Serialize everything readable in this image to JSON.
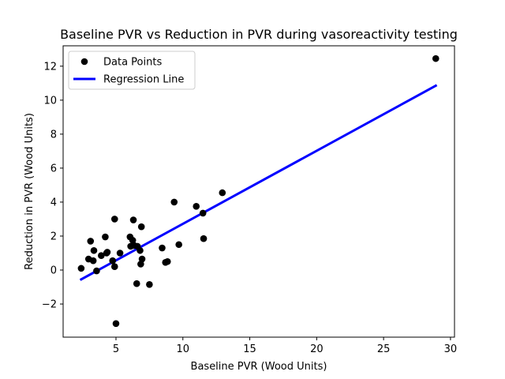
{
  "chart_data": {
    "type": "scatter",
    "title": "Baseline PVR vs Reduction in PVR during vasoreactivity testing",
    "xlabel": "Baseline PVR (Wood Units)",
    "ylabel": "Reduction in PVR (Wood Units)",
    "xlim": [
      1.05,
      30.3
    ],
    "ylim": [
      -3.95,
      13.2
    ],
    "xticks": [
      5,
      10,
      15,
      20,
      25,
      30
    ],
    "yticks": [
      -2,
      0,
      2,
      4,
      6,
      8,
      10,
      12
    ],
    "xtick_labels": [
      "5",
      "10",
      "15",
      "20",
      "25",
      "30"
    ],
    "ytick_labels": [
      "−2",
      "0",
      "2",
      "4",
      "6",
      "8",
      "10",
      "12"
    ],
    "grid": false,
    "legend": {
      "position": "top-left",
      "entries": [
        "Data Points",
        "Regression Line"
      ]
    },
    "series": [
      {
        "name": "Data Points",
        "kind": "scatter",
        "color": "#000000",
        "x": [
          2.4,
          2.95,
          3.1,
          3.3,
          3.35,
          3.55,
          3.9,
          4.2,
          4.3,
          4.35,
          4.75,
          4.9,
          4.9,
          5.0,
          5.3,
          6.05,
          6.1,
          6.25,
          6.3,
          6.35,
          6.55,
          6.6,
          6.8,
          6.85,
          6.9,
          6.95,
          7.5,
          8.45,
          8.7,
          8.85,
          9.35,
          9.7,
          11.0,
          11.5,
          11.55,
          12.95,
          28.9
        ],
        "y": [
          0.1,
          0.65,
          1.7,
          0.55,
          1.15,
          -0.05,
          0.85,
          1.95,
          1.0,
          1.05,
          0.55,
          3.0,
          0.2,
          -3.15,
          1.0,
          1.95,
          1.4,
          1.75,
          2.95,
          1.45,
          -0.8,
          1.4,
          1.15,
          0.35,
          2.55,
          0.65,
          -0.85,
          1.3,
          0.45,
          0.5,
          4.0,
          1.5,
          3.75,
          3.35,
          1.85,
          4.55,
          12.45
        ]
      },
      {
        "name": "Regression Line",
        "kind": "line",
        "color": "#0000ff",
        "x": [
          2.4,
          28.9
        ],
        "y": [
          -0.55,
          10.85
        ]
      }
    ]
  }
}
